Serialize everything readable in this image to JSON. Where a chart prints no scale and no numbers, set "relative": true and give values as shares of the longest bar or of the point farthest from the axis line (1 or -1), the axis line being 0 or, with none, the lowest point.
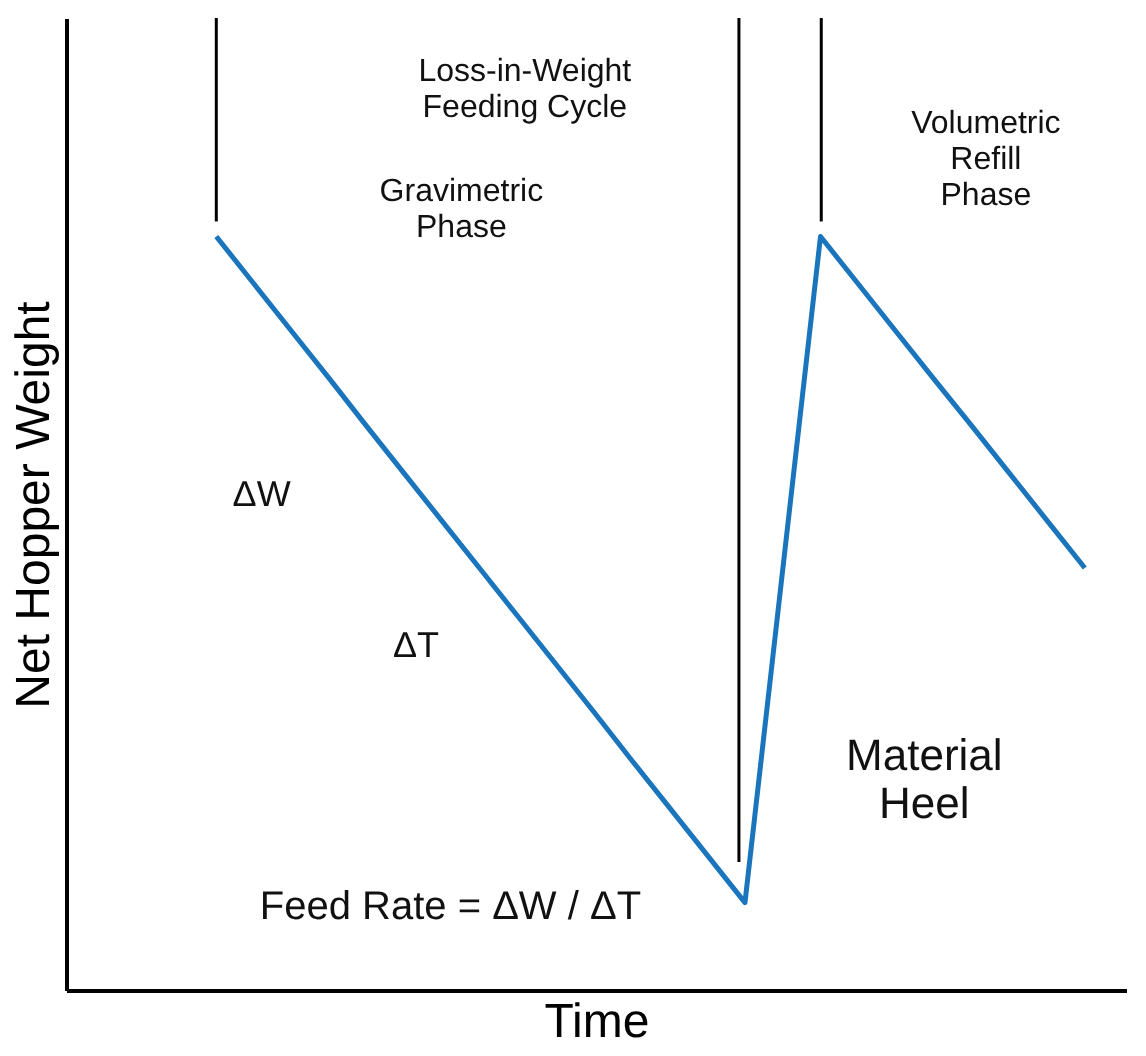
{
  "chart_data": {
    "type": "line",
    "relative": true,
    "xlabel": "Time",
    "ylabel": "Net Hopper Weight",
    "categories": [
      null,
      null,
      null,
      null,
      null,
      null,
      null,
      null,
      null,
      null,
      null,
      null,
      null,
      null,
      null,
      null,
      null,
      null,
      null,
      null,
      null,
      null,
      null,
      null
    ],
    "tick_labels": false,
    "grid": false,
    "marker": "none",
    "line_style": "solid",
    "series": [
      {
        "color": "#1a75bc",
        "values": [
          1,
          0.937,
          0.874,
          0.811,
          0.747,
          0.684,
          0.621,
          0.558,
          0.495,
          0.432,
          0.369,
          0.305,
          0.242,
          0.179,
          0.116,
          0.558,
          1,
          0.937,
          0.874,
          0.811,
          0.749,
          0.686,
          0.623,
          0.56
        ]
      }
    ],
    "annotations": [
      "Loss-in-Weight\nFeeding Cycle",
      "Gravimetric\nPhase",
      "Volumetric\nRefill\nPhase",
      "ΔW",
      "ΔT",
      "Material\nHeel",
      "Feed Rate = ΔW / ΔT"
    ]
  }
}
